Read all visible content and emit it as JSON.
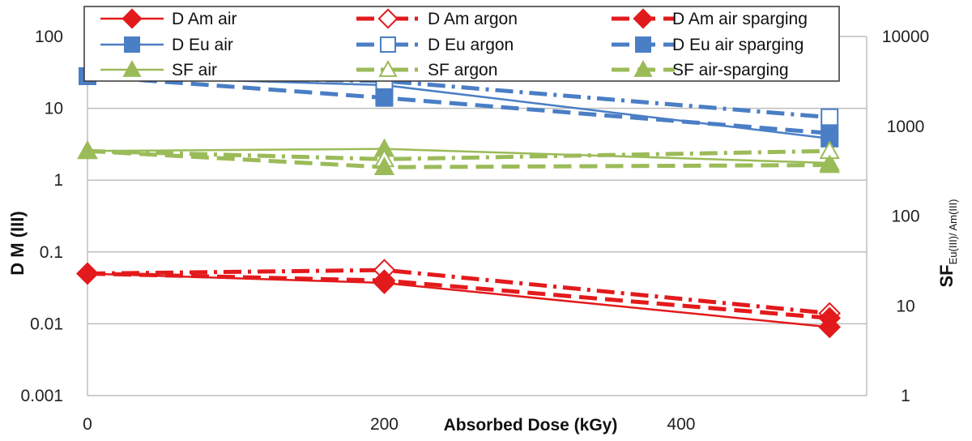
{
  "chart_data": {
    "type": "line",
    "x_ticks": [
      0,
      200,
      400
    ],
    "xlim": [
      0,
      525
    ],
    "xlabel": "Absorbed Dose (kGy)",
    "ylabel_left": "D M (III)",
    "ylabel_right": {
      "main": "SF",
      "subscript": "Eu(III)/ Am(III)"
    },
    "left_axis": {
      "scale": "log",
      "ylim": [
        0.001,
        100
      ],
      "tick_labels": [
        "0.001",
        "0.01",
        "0.1",
        "1",
        "10",
        "100"
      ],
      "tick_values": [
        0.001,
        0.01,
        0.1,
        1,
        10,
        100
      ]
    },
    "right_axis": {
      "scale": "log",
      "ylim": [
        1,
        10000
      ],
      "tick_labels": [
        "1",
        "10",
        "100",
        "1000",
        "10000"
      ],
      "tick_values": [
        1,
        10,
        100,
        1000,
        10000
      ]
    },
    "grid": "horizontal",
    "legend_position": "top",
    "series": [
      {
        "name": "D Am air",
        "axis": "left",
        "color": "#e31a1c",
        "dash": "solid",
        "marker": "diamond",
        "fill": true,
        "x": [
          0,
          200,
          500
        ],
        "y": [
          0.05,
          0.037,
          0.009
        ]
      },
      {
        "name": "D Am argon",
        "axis": "left",
        "color": "#e31a1c",
        "dash": "dashdot",
        "marker": "diamond",
        "fill": false,
        "x": [
          0,
          200,
          500
        ],
        "y": [
          0.05,
          0.056,
          0.014
        ]
      },
      {
        "name": "D Am air sparging",
        "axis": "left",
        "color": "#e31a1c",
        "dash": "dash",
        "marker": "diamond",
        "fill": true,
        "x": [
          0,
          200,
          500
        ],
        "y": [
          0.05,
          0.04,
          0.012
        ]
      },
      {
        "name": "D Eu air",
        "axis": "left",
        "color": "#4a7ec5",
        "dash": "solid",
        "marker": "square",
        "fill": true,
        "x": [
          0,
          200,
          500
        ],
        "y": [
          28,
          21,
          3.8
        ]
      },
      {
        "name": "D Eu argon",
        "axis": "left",
        "color": "#4a7ec5",
        "dash": "dashdot",
        "marker": "square",
        "fill": false,
        "x": [
          0,
          200,
          500
        ],
        "y": [
          28,
          24,
          7.5
        ]
      },
      {
        "name": "D Eu air sparging",
        "axis": "left",
        "color": "#4a7ec5",
        "dash": "dash",
        "marker": "square",
        "fill": true,
        "x": [
          0,
          200,
          500
        ],
        "y": [
          28,
          14,
          4.5
        ]
      },
      {
        "name": "SF air",
        "axis": "right",
        "color": "#9bbb59",
        "dash": "solid",
        "marker": "triangle",
        "fill": true,
        "x": [
          0,
          200,
          500
        ],
        "y": [
          530,
          560,
          390
        ]
      },
      {
        "name": "SF argon",
        "axis": "right",
        "color": "#9bbb59",
        "dash": "dashdot",
        "marker": "triangle",
        "fill": false,
        "x": [
          0,
          200,
          500
        ],
        "y": [
          530,
          430,
          530
        ]
      },
      {
        "name": "SF air-sparging",
        "axis": "right",
        "color": "#9bbb59",
        "dash": "dash",
        "marker": "triangle",
        "fill": true,
        "x": [
          0,
          200,
          500
        ],
        "y": [
          530,
          350,
          370
        ]
      }
    ]
  }
}
